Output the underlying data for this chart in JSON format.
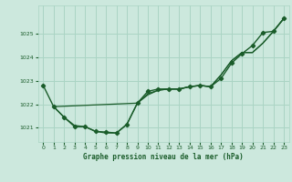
{
  "title": "Graphe pression niveau de la mer (hPa)",
  "background_color": "#cce8dd",
  "grid_color": "#aad4c4",
  "line_color": "#1a5c2a",
  "xlim": [
    -0.5,
    23.5
  ],
  "ylim": [
    1020.4,
    1026.2
  ],
  "yticks": [
    1021,
    1022,
    1023,
    1024,
    1025
  ],
  "xticks": [
    0,
    1,
    2,
    3,
    4,
    5,
    6,
    7,
    8,
    9,
    10,
    11,
    12,
    13,
    14,
    15,
    16,
    17,
    18,
    19,
    20,
    21,
    22,
    23
  ],
  "series": [
    {
      "x": [
        0,
        1,
        2,
        3,
        4,
        5,
        6,
        7,
        8,
        9,
        10,
        11,
        12,
        13,
        14,
        15,
        16,
        17,
        18,
        19,
        20,
        21,
        22,
        23
      ],
      "y": [
        1022.8,
        1021.9,
        1021.45,
        1021.05,
        1021.05,
        1020.85,
        1020.82,
        1020.78,
        1021.15,
        1022.05,
        1022.55,
        1022.65,
        1022.65,
        1022.65,
        1022.75,
        1022.8,
        1022.75,
        1023.1,
        1023.75,
        1024.15,
        1024.5,
        1025.05,
        1025.1,
        1025.65
      ],
      "marker": true,
      "linewidth": 1.0
    },
    {
      "x": [
        1,
        9,
        10,
        11,
        12,
        13,
        14,
        15,
        16,
        17,
        18,
        19,
        20,
        21,
        22,
        23
      ],
      "y": [
        1021.9,
        1022.05,
        1022.45,
        1022.6,
        1022.65,
        1022.65,
        1022.75,
        1022.8,
        1022.75,
        1023.25,
        1023.85,
        1024.2,
        1024.2,
        1024.6,
        1025.1,
        1025.65
      ],
      "marker": false,
      "linewidth": 0.9
    },
    {
      "x": [
        1,
        2,
        3,
        4,
        5,
        6,
        7,
        8,
        9,
        10,
        11,
        12,
        13,
        14,
        15,
        16,
        17,
        18,
        19,
        20,
        21,
        22,
        23
      ],
      "y": [
        1021.9,
        1021.45,
        1021.1,
        1021.05,
        1020.85,
        1020.78,
        1020.78,
        1021.15,
        1022.05,
        1022.4,
        1022.6,
        1022.65,
        1022.65,
        1022.75,
        1022.8,
        1022.75,
        1023.25,
        1023.85,
        1024.2,
        1024.2,
        1024.6,
        1025.1,
        1025.65
      ],
      "marker": false,
      "linewidth": 0.9
    }
  ]
}
